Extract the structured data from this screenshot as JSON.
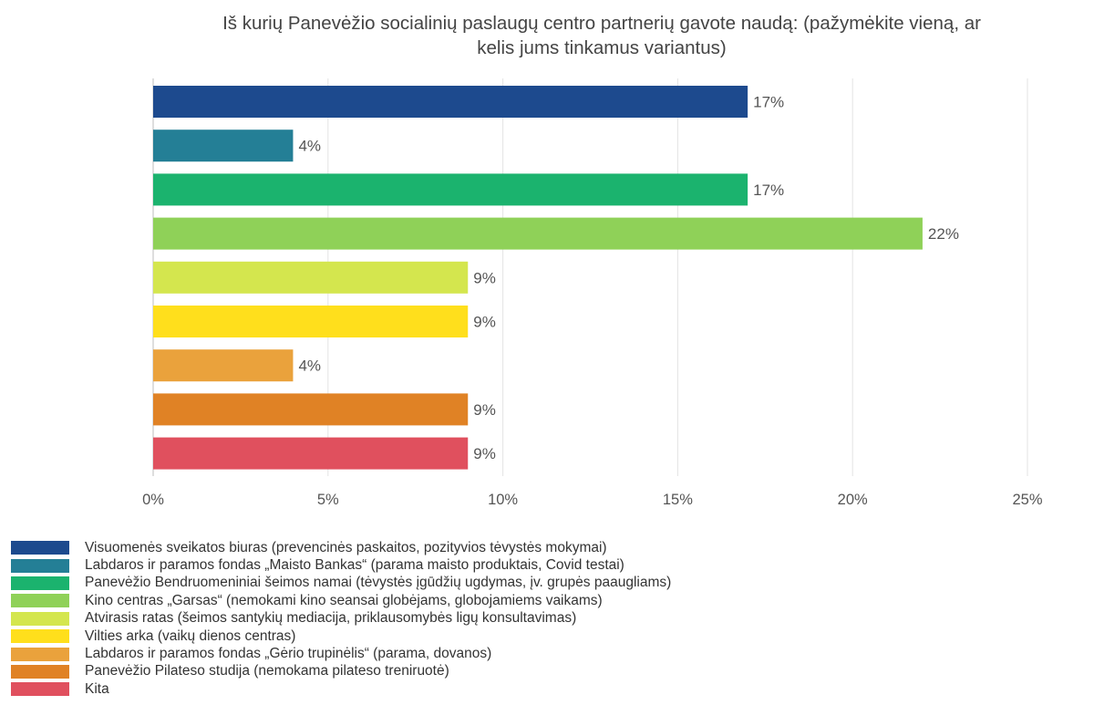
{
  "chart_data": {
    "type": "bar",
    "orientation": "horizontal",
    "title_lines": [
      "Iš kurių Panevėžio socialinių paslaugų centro partnerių gavote naudą: (pažymėkite vieną, ar",
      "kelis jums tinkamus variantus)"
    ],
    "categories": [
      "Visuomenės sveikatos biuras (prevencinės paskaitos, pozityvios tėvystės mokymai)",
      "Labdaros ir paramos fondas „Maisto Bankas“ (parama maisto produktais, Covid testai)",
      "Panevėžio Bendruomeniniai šeimos namai (tėvystės įgūdžių ugdymas, įv. grupės paaugliams)",
      "Kino centras „Garsas“ (nemokami kino seansai globėjams, globojamiems vaikams)",
      "Atvirasis ratas (šeimos santykių mediacija, priklausomybės ligų konsultavimas)",
      "Vilties arka (vaikų dienos centras)",
      "Labdaros ir paramos fondas „Gėrio trupinėlis“ (parama, dovanos)",
      "Panevėžio Pilateso studija (nemokama pilateso treniruotė)",
      "Kita"
    ],
    "values": [
      17,
      4,
      17,
      22,
      9,
      9,
      4,
      9,
      9
    ],
    "value_labels": [
      "17%",
      "4%",
      "17%",
      "22%",
      "9%",
      "9%",
      "4%",
      "9%",
      "9%"
    ],
    "colors": [
      "#1d4a8e",
      "#247f96",
      "#1bb36e",
      "#8fd158",
      "#d4e64e",
      "#ffdf1c",
      "#eaa23c",
      "#e08225",
      "#e0505e"
    ],
    "xlim": [
      0,
      25
    ],
    "xticks": [
      0,
      5,
      10,
      15,
      20,
      25
    ],
    "xtick_labels": [
      "0%",
      "5%",
      "10%",
      "15%",
      "20%",
      "25%"
    ],
    "grid": true,
    "legend_position": "bottom"
  }
}
